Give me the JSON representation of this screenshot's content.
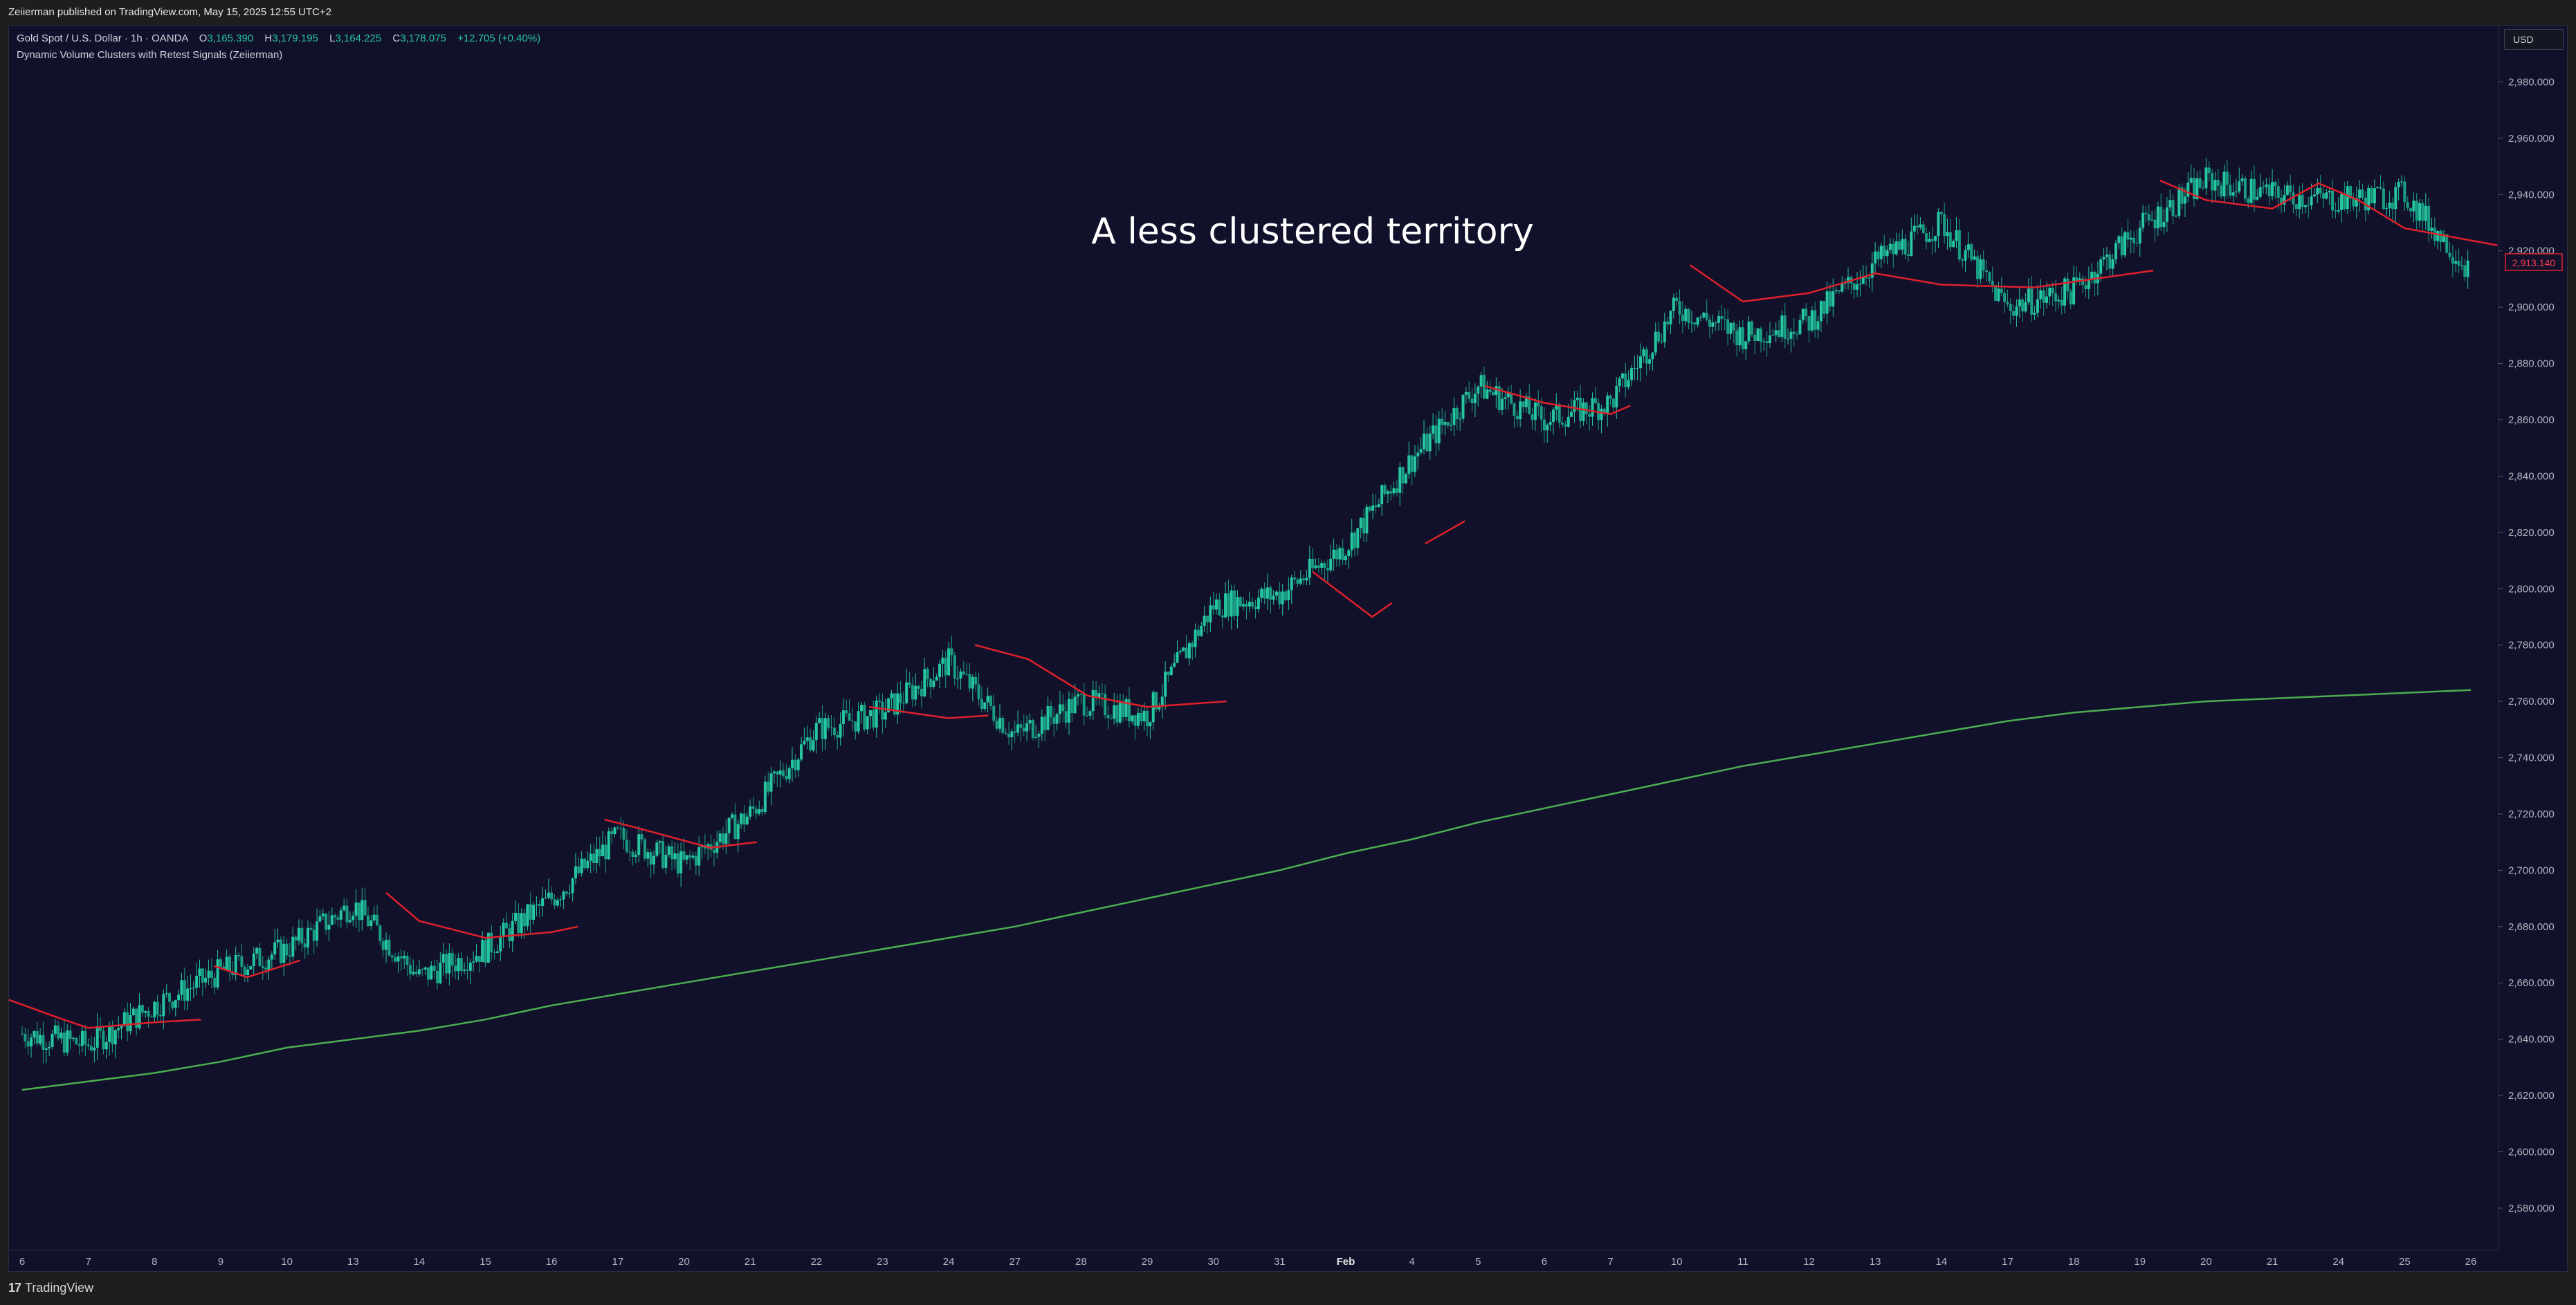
{
  "header": {
    "published_line": "Zeiierman published on TradingView.com, May 15, 2025 12:55 UTC+2"
  },
  "legend": {
    "symbol": "Gold Spot / U.S. Dollar · 1h · OANDA",
    "open_label": "O",
    "open": "3,165.390",
    "high_label": "H",
    "high": "3,179.195",
    "low_label": "L",
    "low": "3,164.225",
    "close_label": "C",
    "close": "3,178.075",
    "change": "+12.705 (+0.40%)",
    "indicator": "Dynamic Volume Clusters with Retest Signals (Zeiierman)"
  },
  "annotation": "A less clustered territory",
  "currency_button": "USD",
  "price_tag": "2,913.140",
  "footer": {
    "brand": "TradingView",
    "logo_glyph": "17"
  },
  "colors": {
    "background": "#11112b",
    "up": "#26c6a0",
    "cluster_line": "#e0202a",
    "long_ma": "#4caf50"
  },
  "chart_data": {
    "type": "line",
    "instrument": "Gold Spot / U.S. Dollar",
    "timeframe": "1h",
    "ylim": [
      2565,
      3000
    ],
    "y_ticks": [
      2580,
      2600,
      2620,
      2640,
      2660,
      2680,
      2700,
      2720,
      2740,
      2760,
      2780,
      2800,
      2820,
      2840,
      2860,
      2880,
      2900,
      2920,
      2940,
      2960,
      2980
    ],
    "y_tick_labels": [
      "2,580.000",
      "2,600.000",
      "2,620.000",
      "2,640.000",
      "2,660.000",
      "2,680.000",
      "2,700.000",
      "2,720.000",
      "2,740.000",
      "2,760.000",
      "2,780.000",
      "2,800.000",
      "2,820.000",
      "2,840.000",
      "2,860.000",
      "2,880.000",
      "2,900.000",
      "2,920.000",
      "2,940.000",
      "2,960.000",
      "2,980.000"
    ],
    "x": [
      0,
      1,
      2,
      3,
      4,
      5,
      6,
      7,
      8,
      9,
      10,
      11,
      12,
      13,
      14,
      15,
      16,
      17,
      18,
      19,
      20,
      21,
      22,
      23,
      24,
      25,
      26,
      27,
      28,
      29,
      30,
      31,
      32,
      33,
      34,
      35,
      36,
      37
    ],
    "x_tick_labels": [
      "6",
      "7",
      "8",
      "9",
      "10",
      "13",
      "14",
      "15",
      "16",
      "17",
      "20",
      "21",
      "22",
      "23",
      "24",
      "27",
      "28",
      "29",
      "30",
      "31",
      "Feb",
      "4",
      "5",
      "6",
      "7",
      "10",
      "11",
      "12",
      "13",
      "14",
      "17",
      "18",
      "19",
      "20",
      "21",
      "24",
      "25",
      "26"
    ],
    "series": [
      {
        "kind": "price",
        "values": [
          2642,
          2638,
          2652,
          2664,
          2672,
          2688,
          2662,
          2672,
          2690,
          2712,
          2702,
          2720,
          2750,
          2756,
          2774,
          2748,
          2760,
          2755,
          2794,
          2798,
          2815,
          2846,
          2872,
          2860,
          2866,
          2900,
          2890,
          2895,
          2916,
          2930,
          2900,
          2906,
          2928,
          2945,
          2940,
          2938,
          2940,
          2913
        ]
      },
      {
        "kind": "long_moving_average",
        "values": [
          2622,
          2625,
          2628,
          2632,
          2637,
          2640,
          2643,
          2647,
          2652,
          2656,
          2660,
          2664,
          2668,
          2672,
          2676,
          2680,
          2685,
          2690,
          2695,
          2700,
          2706,
          2711,
          2717,
          2722,
          2727,
          2732,
          2737,
          2741,
          2745,
          2749,
          2753,
          2756,
          2758,
          2760,
          2761,
          2762,
          2763,
          2764
        ]
      },
      {
        "kind": "volume_cluster_levels",
        "segments": [
          {
            "values": [
              [
                -0.2,
                2654
              ],
              [
                0.5,
                2648
              ],
              [
                1,
                2644
              ],
              [
                2,
                2646
              ],
              [
                2.7,
                2647
              ]
            ]
          },
          {
            "values": [
              [
                2.9,
                2666
              ],
              [
                3.4,
                2662
              ],
              [
                4.2,
                2668
              ]
            ]
          },
          {
            "values": [
              [
                5.5,
                2692
              ],
              [
                6,
                2682
              ],
              [
                7,
                2676
              ],
              [
                8,
                2678
              ],
              [
                8.4,
                2680
              ]
            ]
          },
          {
            "values": [
              [
                8.8,
                2718
              ],
              [
                9.3,
                2715
              ],
              [
                10.4,
                2708
              ],
              [
                11.1,
                2710
              ]
            ]
          },
          {
            "values": [
              [
                12.8,
                2758
              ],
              [
                14,
                2754
              ],
              [
                14.6,
                2755
              ]
            ]
          },
          {
            "values": [
              [
                14.4,
                2780
              ],
              [
                15.2,
                2775
              ],
              [
                16.1,
                2762
              ],
              [
                17,
                2758
              ],
              [
                18.2,
                2760
              ]
            ]
          },
          {
            "values": [
              [
                19.5,
                2806
              ],
              [
                20.4,
                2790
              ],
              [
                20.7,
                2795
              ]
            ]
          },
          {
            "values": [
              [
                21.2,
                2816
              ],
              [
                21.8,
                2824
              ]
            ]
          },
          {
            "values": [
              [
                22.1,
                2872
              ],
              [
                23,
                2866
              ],
              [
                24,
                2862
              ],
              [
                24.3,
                2865
              ]
            ]
          },
          {
            "values": [
              [
                25.2,
                2915
              ],
              [
                26,
                2902
              ],
              [
                27,
                2905
              ],
              [
                28,
                2912
              ],
              [
                29,
                2908
              ],
              [
                30.4,
                2907
              ],
              [
                32.2,
                2913
              ]
            ]
          },
          {
            "values": [
              [
                32.3,
                2945
              ],
              [
                33,
                2938
              ],
              [
                34,
                2935
              ],
              [
                34.7,
                2944
              ],
              [
                35.3,
                2938
              ],
              [
                36,
                2928
              ],
              [
                37.4,
                2922
              ]
            ]
          }
        ]
      }
    ]
  }
}
